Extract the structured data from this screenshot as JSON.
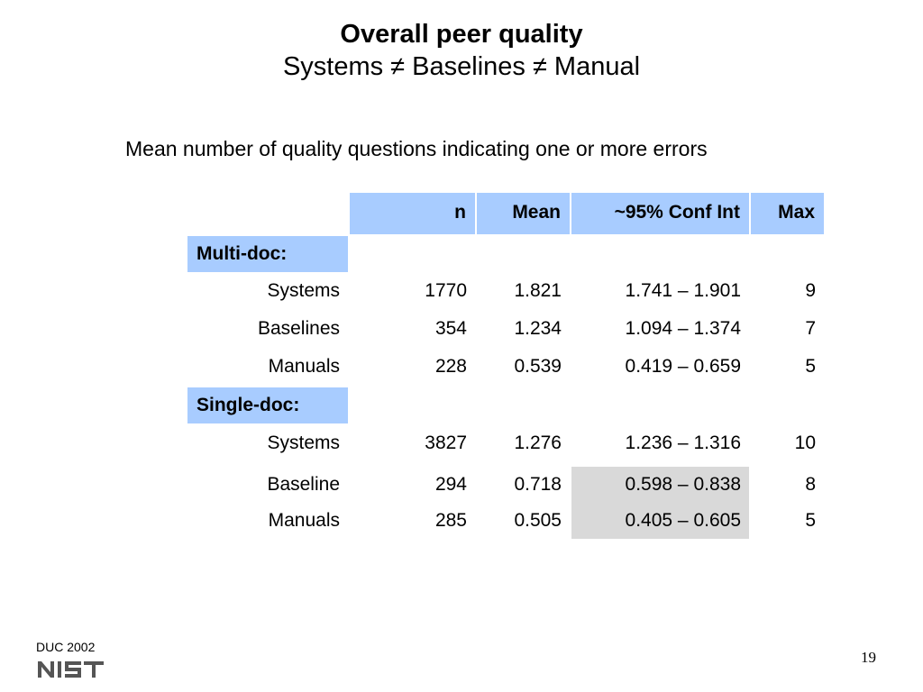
{
  "slide": {
    "title": "Overall peer quality",
    "subtitle": "Systems ≠ Baselines ≠ Manual",
    "caption": "Mean number of quality questions indicating one or more errors",
    "footer": "DUC 2002",
    "logo_text": "NIST",
    "page_number": "19"
  },
  "table": {
    "headers": [
      "n",
      "Mean",
      "~95% Conf Int",
      "Max"
    ],
    "groups": [
      {
        "label": "Multi-doc:",
        "rows": [
          {
            "label": "Systems",
            "n": "1770",
            "mean": "1.821",
            "ci": "1.741 – 1.901",
            "max": "9"
          },
          {
            "label": "Baselines",
            "n": "354",
            "mean": "1.234",
            "ci": "1.094 – 1.374",
            "max": "7"
          },
          {
            "label": "Manuals",
            "n": "228",
            "mean": "0.539",
            "ci": "0.419 – 0.659",
            "max": "5"
          }
        ]
      },
      {
        "label": "Single-doc:",
        "rows": [
          {
            "label": "Systems",
            "n": "3827",
            "mean": "1.276",
            "ci": "1.236 – 1.316",
            "max": "10"
          },
          {
            "label": "Baseline",
            "n": "294",
            "mean": "0.718",
            "ci": "0.598 – 0.838",
            "max": "8",
            "ci_highlight": true
          },
          {
            "label": "Manuals",
            "n": "285",
            "mean": "0.505",
            "ci": "0.405 – 0.605",
            "max": "5",
            "ci_highlight": true
          }
        ]
      }
    ]
  },
  "colors": {
    "header_fill": "#a8ccff",
    "highlight_fill": "#d9d9d9"
  }
}
